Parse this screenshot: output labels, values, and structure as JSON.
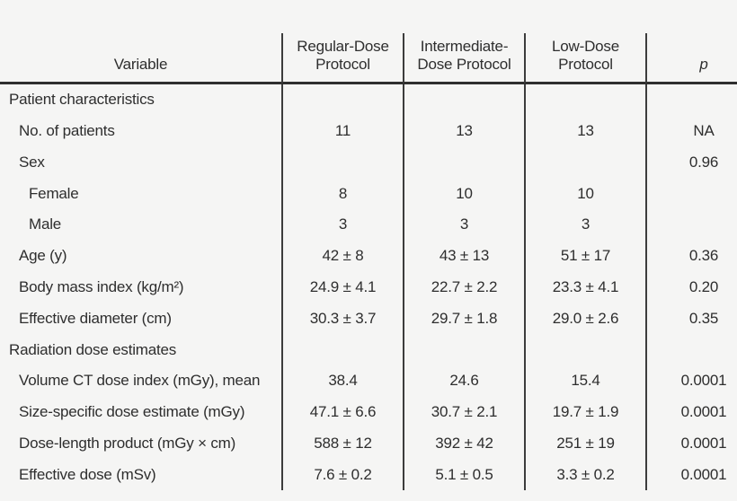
{
  "colors": {
    "background": "#f5f5f4",
    "text": "#2e2e2e",
    "rule": "#3c3c3c",
    "header_rule": "#2f2f2f"
  },
  "table": {
    "header": {
      "variable": "Variable",
      "regular": "Regular-Dose\nProtocol",
      "intermediate": "Intermediate-\nDose Protocol",
      "low": "Low-Dose\nProtocol",
      "p": "p"
    },
    "rows": [
      {
        "label": "Patient characteristics",
        "level": 0,
        "values": [
          "",
          "",
          "",
          ""
        ]
      },
      {
        "label": "No. of patients",
        "level": 1,
        "values": [
          "11",
          "13",
          "13",
          "NA"
        ]
      },
      {
        "label": "Sex",
        "level": 1,
        "values": [
          "",
          "",
          "",
          "0.96"
        ]
      },
      {
        "label": "Female",
        "level": 2,
        "values": [
          "8",
          "10",
          "10",
          ""
        ]
      },
      {
        "label": "Male",
        "level": 2,
        "values": [
          "3",
          "3",
          "3",
          ""
        ]
      },
      {
        "label": "Age (y)",
        "level": 1,
        "values": [
          "42 ± 8",
          "43 ± 13",
          "51 ± 17",
          "0.36"
        ]
      },
      {
        "label": "Body mass index (kg/m²)",
        "level": 1,
        "values": [
          "24.9 ± 4.1",
          "22.7 ± 2.2",
          "23.3 ± 4.1",
          "0.20"
        ]
      },
      {
        "label": "Effective diameter (cm)",
        "level": 1,
        "values": [
          "30.3 ± 3.7",
          "29.7 ± 1.8",
          "29.0 ± 2.6",
          "0.35"
        ]
      },
      {
        "label": "Radiation dose estimates",
        "level": 0,
        "values": [
          "",
          "",
          "",
          ""
        ]
      },
      {
        "label": "Volume CT dose index (mGy), mean",
        "level": 1,
        "values": [
          "38.4",
          "24.6",
          "15.4",
          "0.0001"
        ]
      },
      {
        "label": "Size-specific dose estimate (mGy)",
        "level": 1,
        "values": [
          "47.1 ± 6.6",
          "30.7 ± 2.1",
          "19.7 ± 1.9",
          "0.0001"
        ]
      },
      {
        "label": "Dose-length product (mGy × cm)",
        "level": 1,
        "values": [
          "588 ± 12",
          "392 ± 42",
          "251 ± 19",
          "0.0001"
        ]
      },
      {
        "label": "Effective dose (mSv)",
        "level": 1,
        "values": [
          "7.6 ± 0.2",
          "5.1 ± 0.5",
          "3.3 ± 0.2",
          "0.0001"
        ]
      }
    ]
  }
}
